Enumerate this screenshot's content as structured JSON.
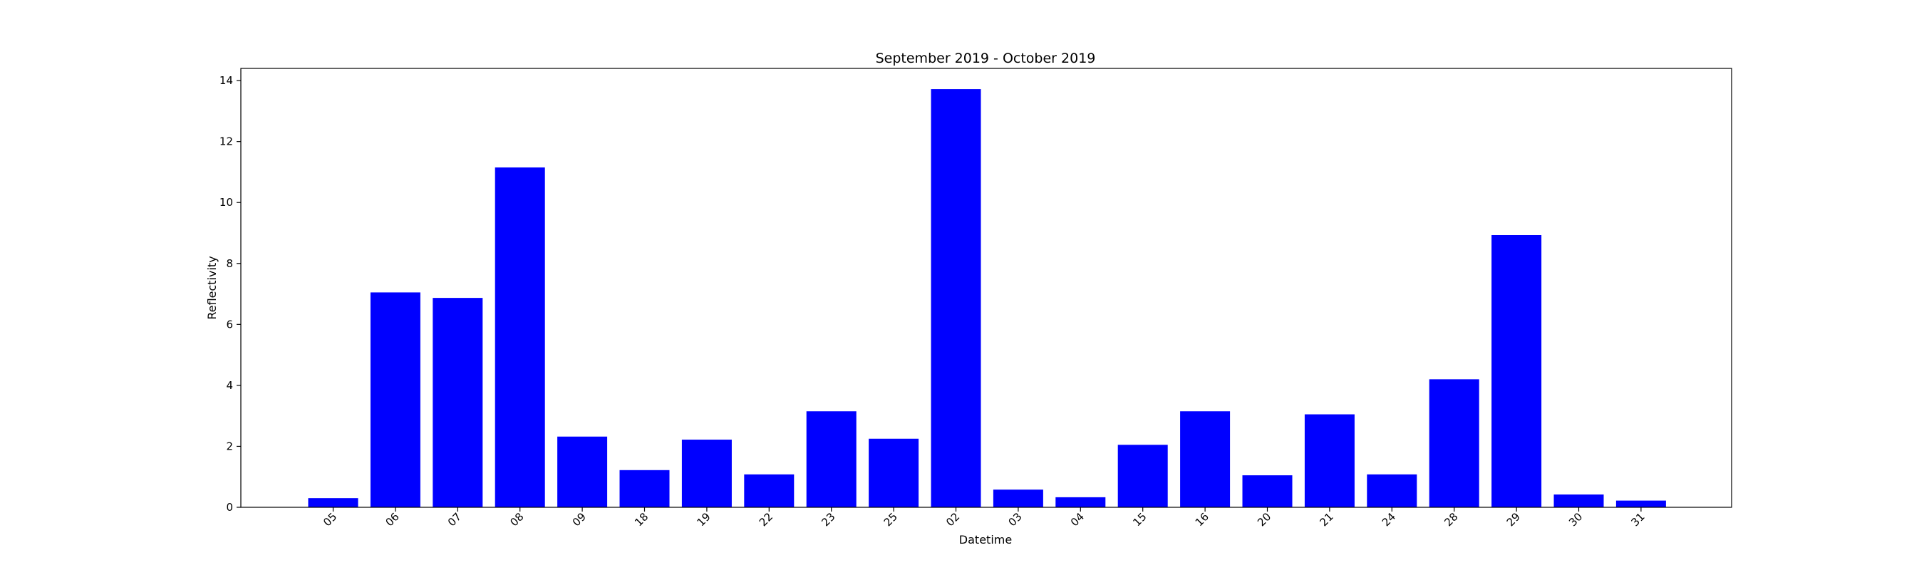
{
  "chart_data": {
    "type": "bar",
    "title": "September 2019 - October 2019",
    "xlabel": "Datetime",
    "ylabel": "Reflectivity",
    "categories": [
      "05",
      "06",
      "07",
      "08",
      "09",
      "18",
      "19",
      "22",
      "23",
      "25",
      "02",
      "03",
      "04",
      "15",
      "16",
      "20",
      "21",
      "24",
      "28",
      "29",
      "30",
      "31"
    ],
    "values": [
      0.3,
      7.05,
      6.87,
      11.15,
      2.32,
      1.22,
      2.22,
      1.08,
      3.15,
      2.25,
      13.72,
      0.58,
      0.33,
      2.05,
      3.15,
      1.05,
      3.05,
      1.08,
      4.2,
      8.93,
      0.42,
      0.22
    ],
    "ylim": [
      0,
      14.4
    ],
    "yticks": [
      0,
      2,
      4,
      6,
      8,
      10,
      12,
      14
    ],
    "bar_color": "#0000ff",
    "grid": false,
    "legend": "none"
  }
}
